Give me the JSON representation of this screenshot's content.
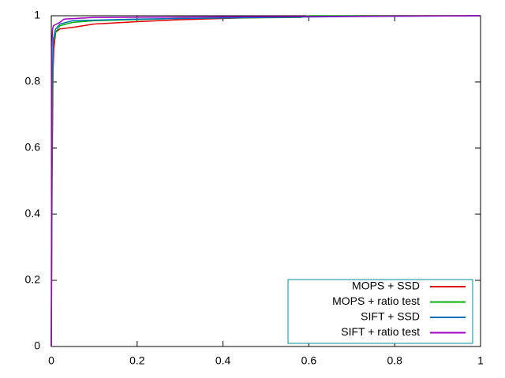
{
  "chart_data": {
    "type": "line",
    "xlim": [
      0,
      1
    ],
    "ylim": [
      0,
      1
    ],
    "xticks": [
      0,
      0.2,
      0.4,
      0.6,
      0.8,
      1
    ],
    "yticks": [
      0,
      0.2,
      0.4,
      0.6,
      0.8,
      1
    ],
    "legend": "bottom-right",
    "series": [
      {
        "name": "MOPS + SSD",
        "color": "#e00000",
        "x": [
          0,
          0.002,
          0.004,
          0.006,
          0.01,
          0.02,
          0.05,
          0.1,
          0.2,
          0.3,
          0.43,
          0.58,
          0.73,
          1
        ],
        "values": [
          0,
          0.52,
          0.83,
          0.9,
          0.95,
          0.96,
          0.965,
          0.975,
          0.982,
          0.988,
          0.993,
          0.997,
          1,
          1
        ]
      },
      {
        "name": "MOPS + ratio test",
        "color": "#00b000",
        "x": [
          0,
          0.002,
          0.005,
          0.01,
          0.02,
          0.05,
          0.1,
          0.3,
          0.58,
          0.6,
          1
        ],
        "values": [
          0,
          0.7,
          0.92,
          0.95,
          0.97,
          0.98,
          0.985,
          0.992,
          0.995,
          1,
          1
        ]
      },
      {
        "name": "SIFT + SSD",
        "color": "#0070c0",
        "x": [
          0,
          0.002,
          0.005,
          0.01,
          0.02,
          0.05,
          0.2,
          0.5,
          0.73,
          1
        ],
        "values": [
          0,
          0.8,
          0.93,
          0.96,
          0.975,
          0.985,
          0.99,
          0.995,
          0.998,
          1
        ]
      },
      {
        "name": "SIFT + ratio test",
        "color": "#a000c0",
        "x": [
          0,
          0.001,
          0.003,
          0.005,
          0.02,
          0.03,
          0.1,
          1
        ],
        "values": [
          0,
          0.9,
          0.96,
          0.97,
          0.98,
          0.99,
          0.995,
          1
        ]
      }
    ]
  }
}
